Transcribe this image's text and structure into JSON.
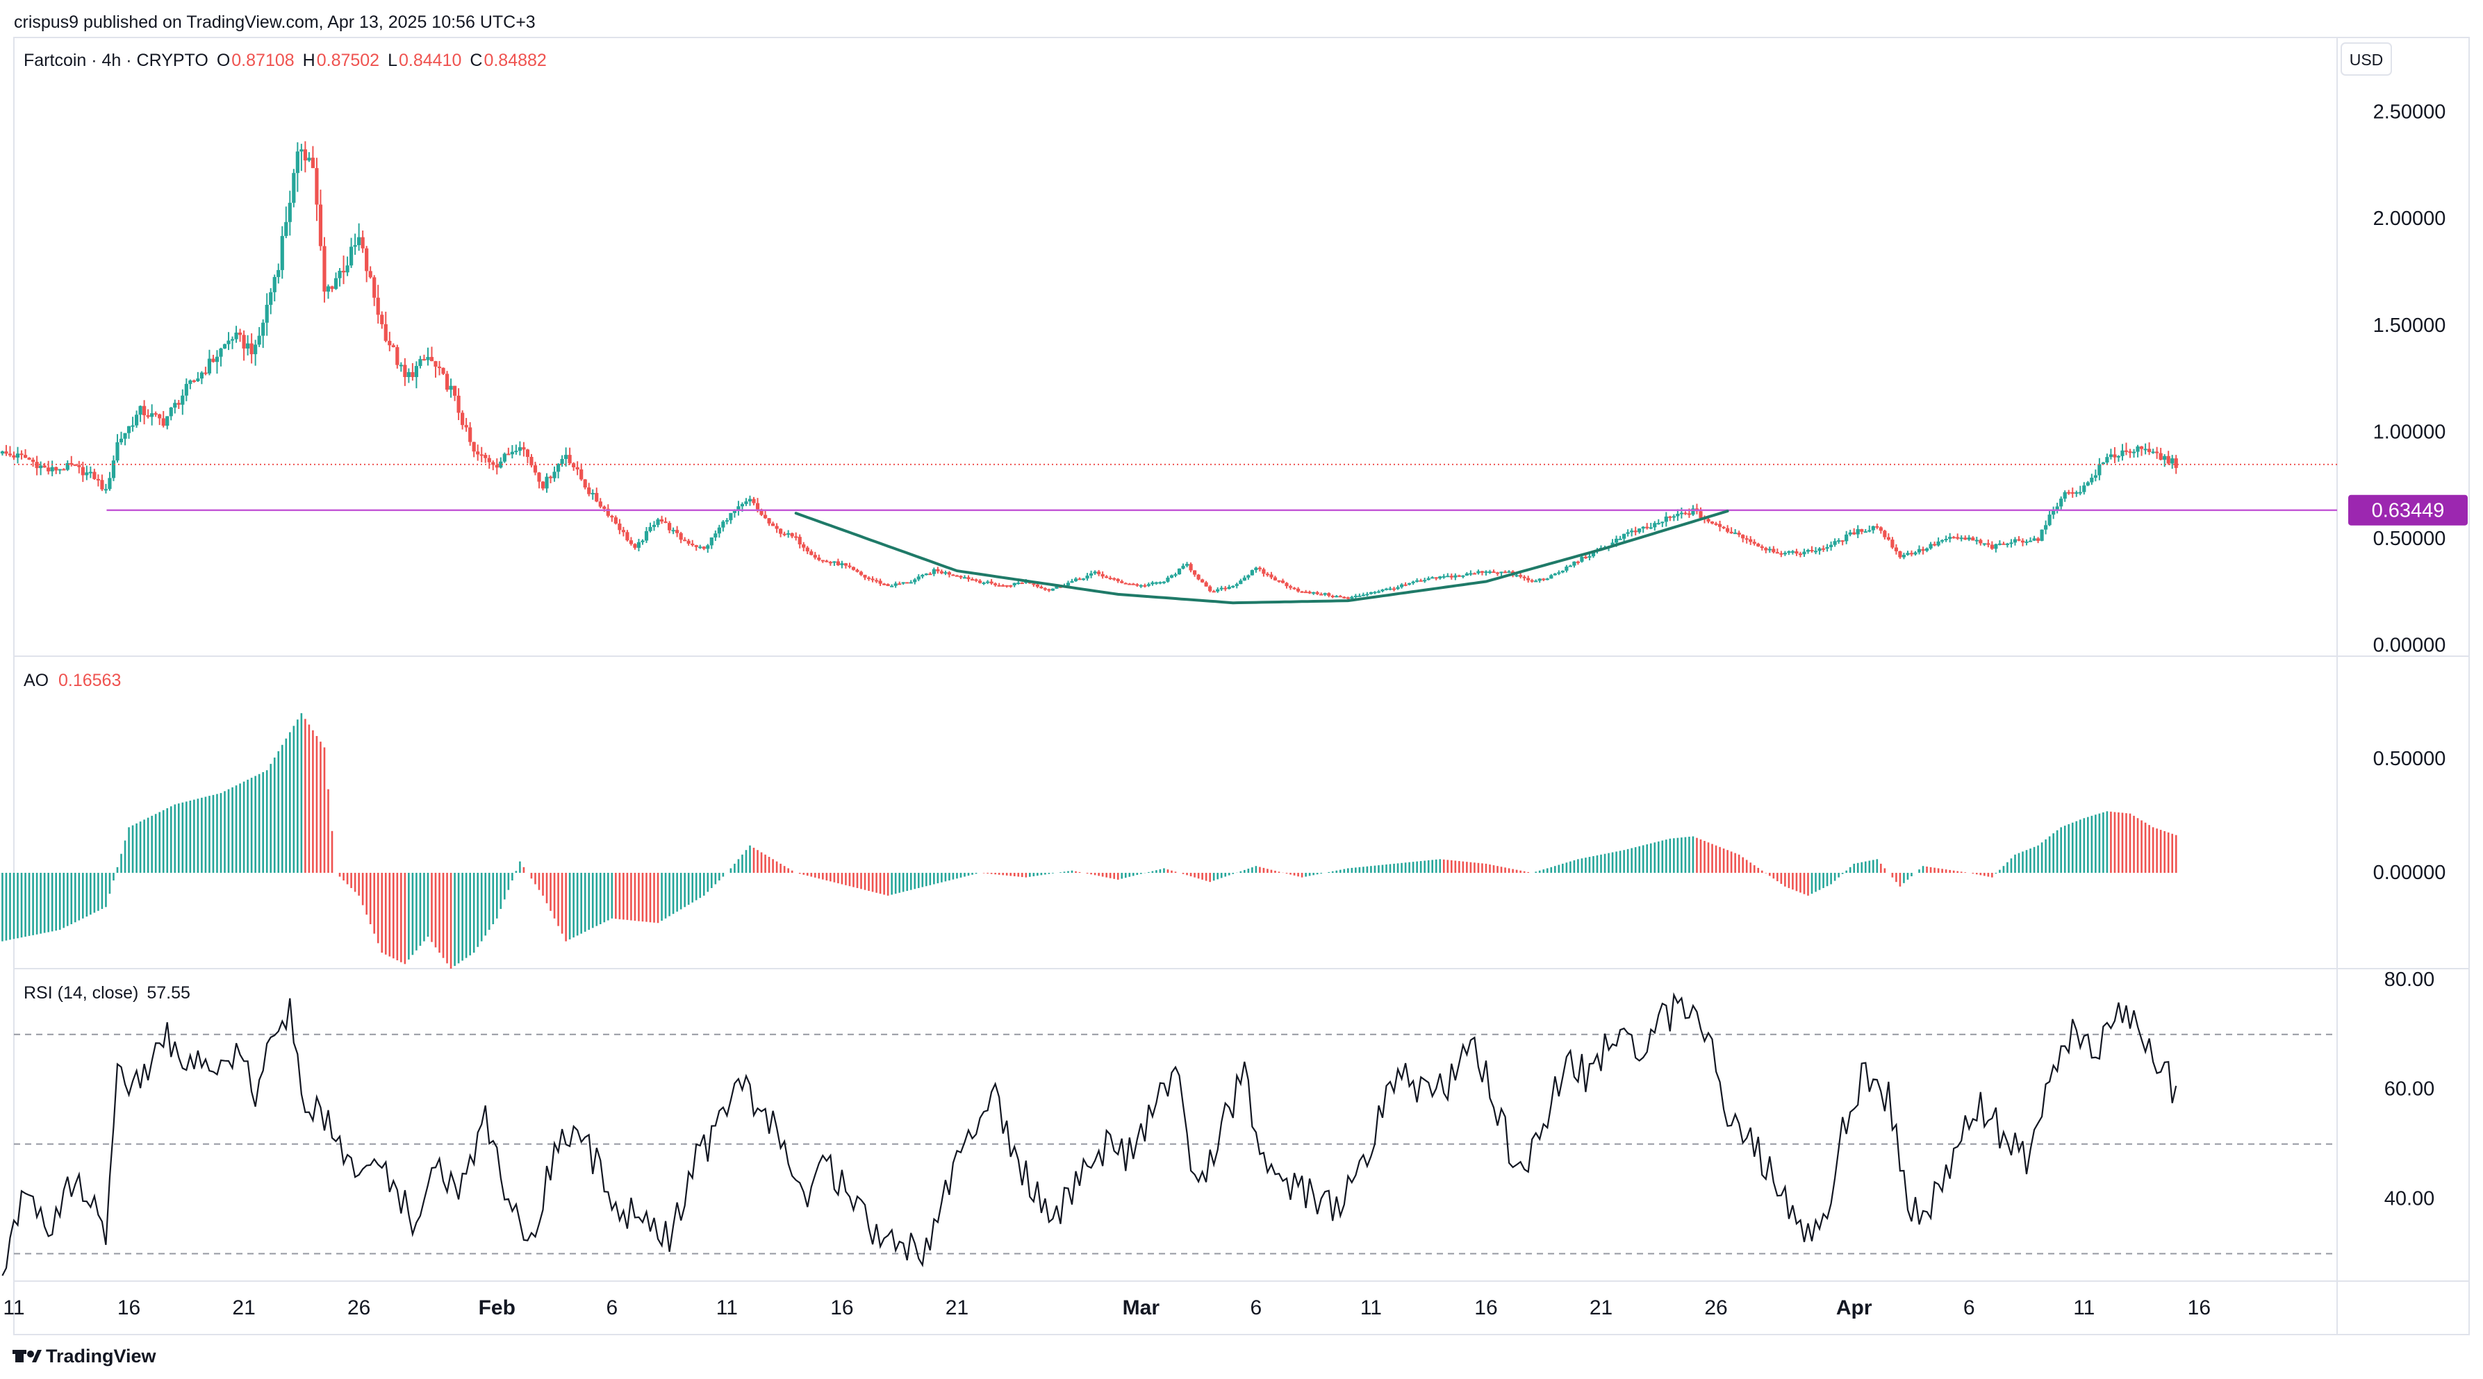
{
  "header": {
    "published_line": "crispus9 published on TradingView.com, Apr 13, 2025 10:56 UTC+3",
    "symbol_line": "Fartcoin · 4h · CRYPTO",
    "ohlc": [
      {
        "key": "O",
        "value": "0.87108"
      },
      {
        "key": "H",
        "value": "0.87502"
      },
      {
        "key": "L",
        "value": "0.84410"
      },
      {
        "key": "C",
        "value": "0.84882"
      }
    ],
    "currency": "USD"
  },
  "footer": {
    "brand": "TradingView"
  },
  "colors": {
    "up": "#26a69a",
    "down": "#ef5350",
    "level_line": "#c45ad6",
    "level_badge": "#9c27b0",
    "curve": "#1f7a68",
    "text": "#131722",
    "grid_border": "#e0e3eb"
  },
  "chart_data": [
    {
      "type": "candlestick",
      "title": "Fartcoin · 4h · CRYPTO",
      "ylim": [
        -0.05,
        2.85
      ],
      "y_ticks": [
        "2.50000",
        "2.00000",
        "1.50000",
        "1.00000",
        "0.50000",
        "0.00000"
      ],
      "y_tick_values": [
        2.5,
        2.0,
        1.5,
        1.0,
        0.5,
        0.0
      ],
      "x_ticks": [
        "11",
        "16",
        "21",
        "26",
        "Feb",
        "6",
        "11",
        "16",
        "21",
        "Mar",
        "6",
        "11",
        "16",
        "21",
        "26",
        "Apr",
        "6",
        "11",
        "16"
      ],
      "x_tick_bold": [
        "Feb",
        "Mar",
        "Apr"
      ],
      "x_range_days": [
        0,
        101
      ],
      "x_tick_days": [
        0,
        5,
        10,
        15,
        21,
        26,
        31,
        36,
        41,
        49,
        54,
        59,
        64,
        69,
        74,
        80,
        85,
        90,
        95
      ],
      "close_path": [
        [
          -0.5,
          0.9
        ],
        [
          0.5,
          0.88
        ],
        [
          1.5,
          0.82
        ],
        [
          2.5,
          0.84
        ],
        [
          3.5,
          0.79
        ],
        [
          4,
          0.72
        ],
        [
          4.5,
          0.95
        ],
        [
          5.5,
          1.1
        ],
        [
          6.5,
          1.05
        ],
        [
          7.5,
          1.2
        ],
        [
          8.5,
          1.32
        ],
        [
          9.5,
          1.45
        ],
        [
          10.5,
          1.38
        ],
        [
          11.5,
          1.8
        ],
        [
          12,
          2.1
        ],
        [
          12.5,
          2.35
        ],
        [
          13,
          2.25
        ],
        [
          13.5,
          1.65
        ],
        [
          14.5,
          1.8
        ],
        [
          15,
          1.9
        ],
        [
          16,
          1.5
        ],
        [
          17,
          1.25
        ],
        [
          18,
          1.35
        ],
        [
          19,
          1.2
        ],
        [
          20,
          0.9
        ],
        [
          21,
          0.85
        ],
        [
          22,
          0.95
        ],
        [
          23,
          0.75
        ],
        [
          24,
          0.9
        ],
        [
          25,
          0.72
        ],
        [
          26,
          0.6
        ],
        [
          27,
          0.45
        ],
        [
          28,
          0.6
        ],
        [
          29,
          0.5
        ],
        [
          30,
          0.45
        ],
        [
          31,
          0.6
        ],
        [
          32,
          0.68
        ],
        [
          33,
          0.55
        ],
        [
          34,
          0.5
        ],
        [
          35,
          0.4
        ],
        [
          36,
          0.38
        ],
        [
          37,
          0.32
        ],
        [
          38,
          0.28
        ],
        [
          39,
          0.3
        ],
        [
          40,
          0.35
        ],
        [
          41,
          0.33
        ],
        [
          42,
          0.3
        ],
        [
          43,
          0.28
        ],
        [
          44,
          0.3
        ],
        [
          45,
          0.26
        ],
        [
          46,
          0.3
        ],
        [
          47,
          0.34
        ],
        [
          48,
          0.3
        ],
        [
          49,
          0.28
        ],
        [
          50,
          0.3
        ],
        [
          51,
          0.38
        ],
        [
          52,
          0.25
        ],
        [
          53,
          0.28
        ],
        [
          54,
          0.36
        ],
        [
          55,
          0.3
        ],
        [
          56,
          0.25
        ],
        [
          57,
          0.24
        ],
        [
          58,
          0.22
        ],
        [
          59,
          0.25
        ],
        [
          60,
          0.27
        ],
        [
          61,
          0.3
        ],
        [
          62,
          0.32
        ],
        [
          63,
          0.33
        ],
        [
          64,
          0.35
        ],
        [
          65,
          0.34
        ],
        [
          66,
          0.3
        ],
        [
          67,
          0.33
        ],
        [
          68,
          0.4
        ],
        [
          69,
          0.45
        ],
        [
          70,
          0.52
        ],
        [
          71,
          0.55
        ],
        [
          72,
          0.6
        ],
        [
          73,
          0.63
        ],
        [
          74,
          0.56
        ],
        [
          75,
          0.52
        ],
        [
          76,
          0.46
        ],
        [
          77,
          0.43
        ],
        [
          78,
          0.44
        ],
        [
          79,
          0.47
        ],
        [
          80,
          0.53
        ],
        [
          81,
          0.56
        ],
        [
          82,
          0.42
        ],
        [
          83,
          0.45
        ],
        [
          84,
          0.5
        ],
        [
          85,
          0.5
        ],
        [
          86,
          0.46
        ],
        [
          87,
          0.49
        ],
        [
          88,
          0.5
        ],
        [
          89,
          0.7
        ],
        [
          90,
          0.74
        ],
        [
          91,
          0.88
        ],
        [
          92,
          0.92
        ],
        [
          93,
          0.9
        ],
        [
          94,
          0.85
        ]
      ],
      "last_price": 0.84882,
      "annotations": [
        {
          "type": "horizontal_line",
          "y": 0.63449,
          "label": "0.63449"
        },
        {
          "type": "cup_curve",
          "points": [
            [
              34,
              0.62
            ],
            [
              41,
              0.35
            ],
            [
              48,
              0.24
            ],
            [
              53,
              0.2
            ],
            [
              58,
              0.21
            ],
            [
              64,
              0.3
            ],
            [
              69,
              0.45
            ],
            [
              74.5,
              0.63
            ]
          ]
        }
      ]
    },
    {
      "type": "histogram",
      "title": "AO",
      "value_label": "0.16563",
      "ylim": [
        -0.42,
        0.95
      ],
      "y_ticks": [
        "0.50000",
        "0.00000"
      ],
      "y_tick_values": [
        0.5,
        0.0
      ],
      "path": [
        [
          -0.5,
          -0.3
        ],
        [
          2,
          -0.25
        ],
        [
          4,
          -0.15
        ],
        [
          5,
          0.2
        ],
        [
          7,
          0.3
        ],
        [
          9,
          0.35
        ],
        [
          11,
          0.45
        ],
        [
          12.5,
          0.7
        ],
        [
          13.5,
          0.55
        ],
        [
          14,
          0.0
        ],
        [
          15,
          -0.1
        ],
        [
          16,
          -0.35
        ],
        [
          17,
          -0.4
        ],
        [
          18,
          -0.28
        ],
        [
          19,
          -0.42
        ],
        [
          20,
          -0.35
        ],
        [
          21,
          -0.2
        ],
        [
          22,
          0.05
        ],
        [
          23,
          -0.1
        ],
        [
          24,
          -0.3
        ],
        [
          26,
          -0.2
        ],
        [
          28,
          -0.22
        ],
        [
          30,
          -0.1
        ],
        [
          31,
          0.0
        ],
        [
          32,
          0.12
        ],
        [
          34,
          0.0
        ],
        [
          36,
          -0.05
        ],
        [
          38,
          -0.1
        ],
        [
          40,
          -0.05
        ],
        [
          42,
          0.0
        ],
        [
          44,
          -0.02
        ],
        [
          46,
          0.01
        ],
        [
          48,
          -0.03
        ],
        [
          50,
          0.02
        ],
        [
          52,
          -0.04
        ],
        [
          54,
          0.03
        ],
        [
          56,
          -0.02
        ],
        [
          58,
          0.02
        ],
        [
          60,
          0.04
        ],
        [
          62,
          0.06
        ],
        [
          64,
          0.04
        ],
        [
          66,
          0.0
        ],
        [
          68,
          0.06
        ],
        [
          70,
          0.1
        ],
        [
          72,
          0.15
        ],
        [
          73,
          0.16
        ],
        [
          75,
          0.08
        ],
        [
          77,
          -0.06
        ],
        [
          78,
          -0.1
        ],
        [
          79,
          -0.05
        ],
        [
          80,
          0.04
        ],
        [
          81,
          0.06
        ],
        [
          82,
          -0.06
        ],
        [
          83,
          0.03
        ],
        [
          85,
          0.0
        ],
        [
          86,
          -0.02
        ],
        [
          87,
          0.08
        ],
        [
          88,
          0.12
        ],
        [
          89,
          0.2
        ],
        [
          90,
          0.24
        ],
        [
          91,
          0.27
        ],
        [
          92,
          0.26
        ],
        [
          93,
          0.2
        ],
        [
          94,
          0.16563
        ]
      ]
    },
    {
      "type": "line",
      "title": "RSI (14, close)",
      "value_label": "57.55",
      "ylim": [
        25,
        82
      ],
      "y_ticks": [
        "80.00",
        "60.00",
        "40.00"
      ],
      "y_tick_values": [
        80,
        60,
        40
      ],
      "bands": [
        70,
        50,
        30
      ],
      "path": [
        [
          -0.5,
          27
        ],
        [
          0.5,
          42
        ],
        [
          1.5,
          35
        ],
        [
          2.5,
          43
        ],
        [
          3.5,
          38
        ],
        [
          4,
          32
        ],
        [
          4.5,
          64
        ],
        [
          5.5,
          60
        ],
        [
          6.5,
          70
        ],
        [
          7.5,
          66
        ],
        [
          8.5,
          62
        ],
        [
          9.5,
          67
        ],
        [
          10.5,
          60
        ],
        [
          11.5,
          71
        ],
        [
          12,
          74
        ],
        [
          12.5,
          60
        ],
        [
          13.5,
          55
        ],
        [
          14.5,
          47
        ],
        [
          15.5,
          46
        ],
        [
          16.5,
          42
        ],
        [
          17.5,
          35
        ],
        [
          18.5,
          46
        ],
        [
          19.5,
          42
        ],
        [
          20.5,
          55
        ],
        [
          21.5,
          40
        ],
        [
          22.5,
          32
        ],
        [
          23.5,
          48
        ],
        [
          24.5,
          55
        ],
        [
          25.5,
          44
        ],
        [
          26.5,
          38
        ],
        [
          27.5,
          36
        ],
        [
          28.5,
          32
        ],
        [
          29.5,
          46
        ],
        [
          30.5,
          52
        ],
        [
          31.5,
          64
        ],
        [
          32.5,
          56
        ],
        [
          33.5,
          50
        ],
        [
          34.5,
          42
        ],
        [
          35.5,
          46
        ],
        [
          36.5,
          38
        ],
        [
          37.5,
          34
        ],
        [
          38.5,
          32
        ],
        [
          39.5,
          30
        ],
        [
          40.5,
          42
        ],
        [
          41.5,
          52
        ],
        [
          42.5,
          60
        ],
        [
          43.5,
          48
        ],
        [
          44.5,
          40
        ],
        [
          45.5,
          38
        ],
        [
          46.5,
          44
        ],
        [
          47.5,
          50
        ],
        [
          48.5,
          48
        ],
        [
          49.5,
          56
        ],
        [
          50.5,
          64
        ],
        [
          51.5,
          40
        ],
        [
          52.5,
          54
        ],
        [
          53.5,
          62
        ],
        [
          54.5,
          45
        ],
        [
          55.5,
          42
        ],
        [
          56.5,
          41
        ],
        [
          57.5,
          38
        ],
        [
          58.5,
          44
        ],
        [
          59.5,
          57
        ],
        [
          60.5,
          62
        ],
        [
          61.5,
          58
        ],
        [
          62.5,
          62
        ],
        [
          63.5,
          68
        ],
        [
          64.5,
          56
        ],
        [
          65.5,
          44
        ],
        [
          66.5,
          52
        ],
        [
          67.5,
          66
        ],
        [
          68.5,
          62
        ],
        [
          69.5,
          70
        ],
        [
          70.5,
          66
        ],
        [
          71.5,
          72
        ],
        [
          72.5,
          76
        ],
        [
          73.5,
          72
        ],
        [
          74.5,
          56
        ],
        [
          75.5,
          50
        ],
        [
          76.5,
          44
        ],
        [
          77.5,
          36
        ],
        [
          78.5,
          33
        ],
        [
          79.5,
          52
        ],
        [
          80.5,
          64
        ],
        [
          81.5,
          58
        ],
        [
          82.5,
          38
        ],
        [
          83.5,
          40
        ],
        [
          84.5,
          50
        ],
        [
          85.5,
          56
        ],
        [
          86.5,
          52
        ],
        [
          87.5,
          48
        ],
        [
          88.5,
          60
        ],
        [
          89.5,
          72
        ],
        [
          90.5,
          66
        ],
        [
          91.5,
          76
        ],
        [
          92.5,
          70
        ],
        [
          93.5,
          64
        ],
        [
          94,
          57.55
        ]
      ]
    }
  ]
}
